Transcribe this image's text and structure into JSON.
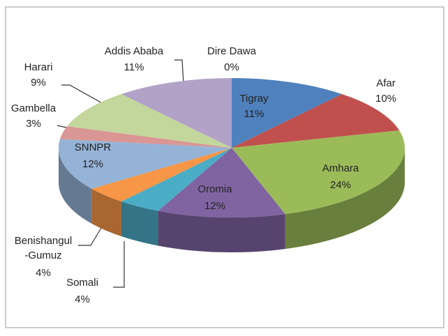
{
  "chart_data": {
    "type": "pie3d",
    "categories": [
      "Tigray",
      "Afar",
      "Amhara",
      "Oromia",
      "Somali",
      "Benishangul\n-Gumuz",
      "SNNPR",
      "Gambella",
      "Harari",
      "Addis Ababa",
      "Dire Dawa"
    ],
    "values": [
      11,
      10,
      24,
      12,
      4,
      4,
      12,
      3,
      9,
      11,
      0
    ],
    "value_labels": [
      "11%",
      "10%",
      "24%",
      "12%",
      "4%",
      "4%",
      "12%",
      "3%",
      "9%",
      "11%",
      "0%"
    ],
    "colors": [
      "#4f81bd",
      "#c0504d",
      "#9bbb59",
      "#8064a2",
      "#4bacc6",
      "#f79646",
      "#95b3d7",
      "#d99694",
      "#c3d69b",
      "#b3a2c7",
      "#92cddc"
    ]
  }
}
